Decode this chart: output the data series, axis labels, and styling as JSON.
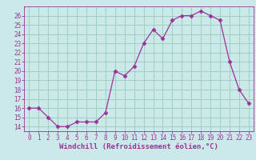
{
  "x": [
    0,
    1,
    2,
    3,
    4,
    5,
    6,
    7,
    8,
    9,
    10,
    11,
    12,
    13,
    14,
    15,
    16,
    17,
    18,
    19,
    20,
    21,
    22,
    23
  ],
  "y": [
    16,
    16,
    15,
    14,
    14,
    14.5,
    14.5,
    14.5,
    15.5,
    20,
    19.5,
    20.5,
    23,
    24.5,
    23.5,
    25.5,
    26,
    26,
    26.5,
    26,
    25.5,
    21,
    18,
    16.5
  ],
  "line_color": "#993399",
  "marker": "D",
  "marker_size": 2.5,
  "bg_color": "#cce9e9",
  "grid_color": "#99ccbb",
  "xlabel": "Windchill (Refroidissement éolien,°C)",
  "xlim": [
    -0.5,
    23.5
  ],
  "ylim": [
    13.5,
    27.0
  ],
  "yticks": [
    14,
    15,
    16,
    17,
    18,
    19,
    20,
    21,
    22,
    23,
    24,
    25,
    26
  ],
  "xticks": [
    0,
    1,
    2,
    3,
    4,
    5,
    6,
    7,
    8,
    9,
    10,
    11,
    12,
    13,
    14,
    15,
    16,
    17,
    18,
    19,
    20,
    21,
    22,
    23
  ],
  "font_color": "#993399",
  "tick_fontsize": 5.5,
  "label_fontsize": 6.5
}
